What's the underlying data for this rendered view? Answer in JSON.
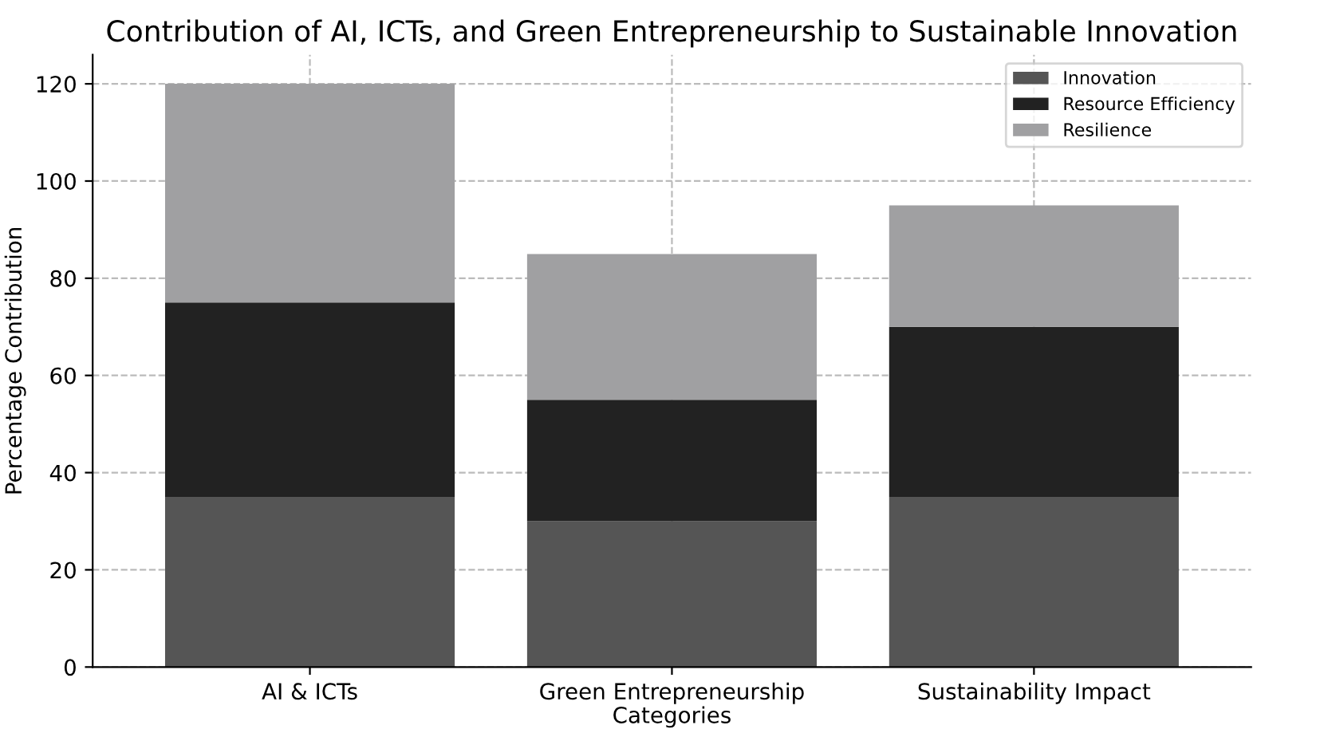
{
  "chart_data": {
    "type": "bar",
    "title": "Contribution of AI, ICTs, and Green Entrepreneurship to Sustainable Innovation",
    "xlabel": "Categories",
    "ylabel": "Percentage Contribution",
    "categories": [
      "AI & ICTs",
      "Green Entrepreneurship",
      "Sustainability Impact"
    ],
    "stacked": true,
    "series": [
      {
        "name": "Innovation",
        "color": "#555555",
        "values": [
          35,
          30,
          35
        ]
      },
      {
        "name": "Resource Efficiency",
        "color": "#222222",
        "values": [
          40,
          25,
          35
        ]
      },
      {
        "name": "Resilience",
        "color": "#a0a0a2",
        "values": [
          45,
          30,
          25
        ]
      }
    ],
    "ylim": [
      0,
      126
    ],
    "yticks": [
      0,
      20,
      40,
      60,
      80,
      100,
      120
    ],
    "grid": true,
    "legend": "top right"
  }
}
